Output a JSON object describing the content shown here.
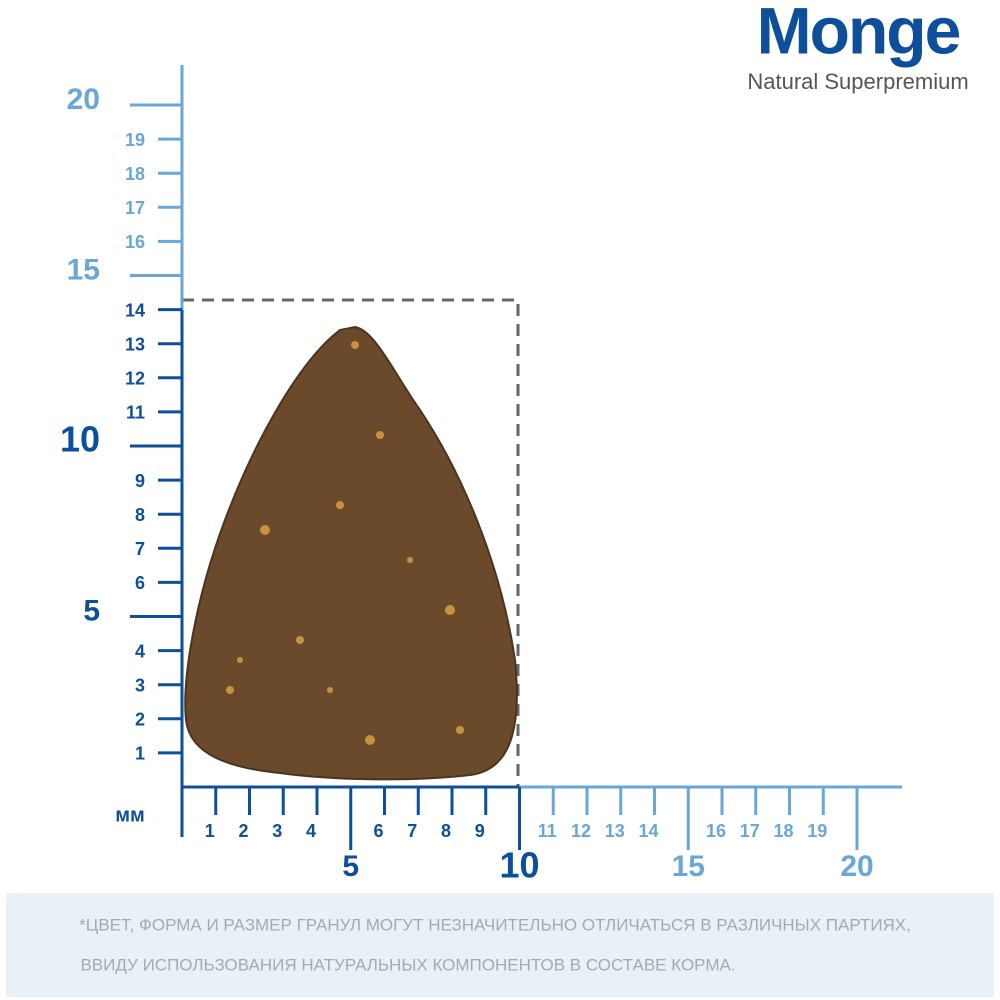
{
  "logo": {
    "brand": "Monge",
    "tagline": "Natural Superpremium"
  },
  "ruler": {
    "unit": "мм",
    "y_labels": [
      1,
      2,
      3,
      4,
      5,
      6,
      7,
      8,
      9,
      10,
      11,
      12,
      13,
      14,
      15,
      16,
      17,
      18,
      19,
      20
    ],
    "x_labels": [
      1,
      2,
      3,
      4,
      5,
      6,
      7,
      8,
      9,
      10,
      11,
      12,
      13,
      14,
      15,
      16,
      17,
      18,
      19,
      20
    ]
  },
  "note": {
    "lines": [
      "*ЦВЕТ, ФОРМА И РАЗМЕР ГРАНУЛ МОГУТ НЕЗНАЧИТЕЛЬНО ОТЛИЧАТЬСЯ В РАЗЛИЧНЫХ ПАРТИЯХ,",
      "ВВИДУ ИСПОЛЬЗОВАНИЯ НАТУРАЛЬНЫХ КОМПОНЕНТОВ В СОСТАВЕ КОРМА."
    ]
  }
}
